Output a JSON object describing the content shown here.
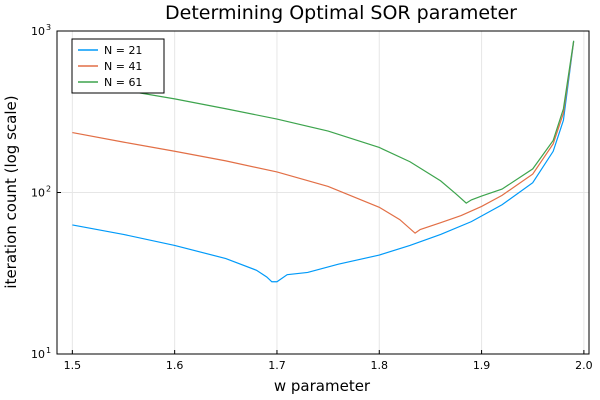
{
  "chart_data": {
    "type": "line",
    "title": "Determining Optimal SOR parameter",
    "xlabel": "w parameter",
    "ylabel": "iteration count (log scale)",
    "xlim": [
      1.485,
      2.005
    ],
    "ylim": [
      10,
      1000
    ],
    "yscale": "log",
    "grid": true,
    "legend": "top-left",
    "xticks": [
      {
        "value": 1.5,
        "label": "1.5"
      },
      {
        "value": 1.6,
        "label": "1.6"
      },
      {
        "value": 1.7,
        "label": "1.7"
      },
      {
        "value": 1.8,
        "label": "1.8"
      },
      {
        "value": 1.9,
        "label": "1.9"
      },
      {
        "value": 2.0,
        "label": "2.0"
      }
    ],
    "yticks": [
      {
        "value": 10,
        "base": "10",
        "exp": "1"
      },
      {
        "value": 100,
        "base": "10",
        "exp": "2"
      },
      {
        "value": 1000,
        "base": "10",
        "exp": "3"
      }
    ],
    "series": [
      {
        "name": "N = 21",
        "color": "#009af9",
        "x": [
          1.5,
          1.55,
          1.6,
          1.65,
          1.68,
          1.69,
          1.695,
          1.7,
          1.71,
          1.73,
          1.76,
          1.8,
          1.83,
          1.86,
          1.89,
          1.92,
          1.95,
          1.97,
          1.98,
          1.99
        ],
        "y": [
          63,
          55,
          47,
          39,
          33,
          30,
          28,
          28,
          31,
          32,
          36,
          41,
          47,
          55,
          66,
          84,
          115,
          180,
          280,
          860
        ]
      },
      {
        "name": "N = 41",
        "color": "#e26f46",
        "x": [
          1.5,
          1.55,
          1.6,
          1.65,
          1.7,
          1.75,
          1.8,
          1.82,
          1.835,
          1.84,
          1.86,
          1.88,
          1.9,
          1.92,
          1.95,
          1.97,
          1.98,
          1.99
        ],
        "y": [
          235,
          205,
          180,
          157,
          134,
          109,
          81,
          68,
          56,
          59,
          65,
          72,
          82,
          96,
          130,
          200,
          310,
          860
        ]
      },
      {
        "name": "N = 61",
        "color": "#3da44d",
        "x": [
          1.5,
          1.55,
          1.6,
          1.65,
          1.7,
          1.75,
          1.8,
          1.83,
          1.86,
          1.875,
          1.885,
          1.89,
          1.9,
          1.92,
          1.95,
          1.97,
          1.98,
          1.99
        ],
        "y": [
          490,
          430,
          380,
          330,
          285,
          240,
          190,
          155,
          118,
          98,
          86,
          90,
          95,
          105,
          140,
          210,
          330,
          870
        ]
      }
    ]
  }
}
